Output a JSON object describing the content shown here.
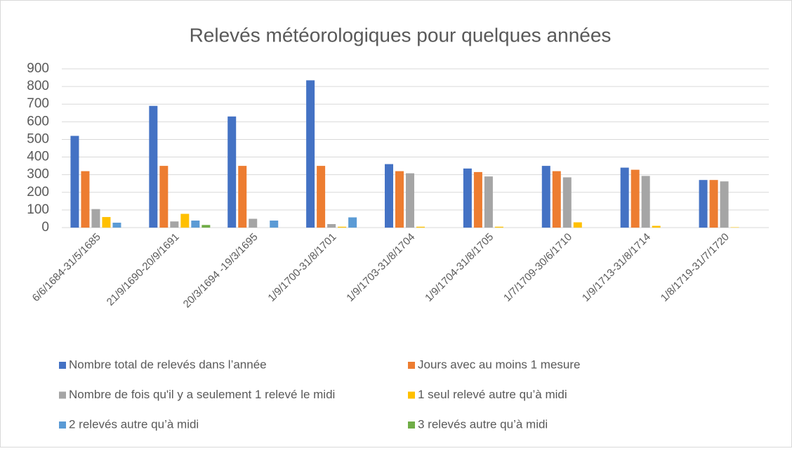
{
  "chart_data": {
    "type": "bar",
    "title": "Relevés météorologiques pour quelques années",
    "categories": [
      "6/6/1684-31/5/1685",
      "21/9/1690-20/9/1691",
      "20/3/1694 -19/3/1695",
      "1/9/1700-31/8/1701",
      "1/9/1703-31/8/1704",
      "1/9/1704-31/8/1705",
      "1/7/1709-30/6/1710",
      "1/9/1713-31/8/1714",
      "1/8/1719-31/7/1720"
    ],
    "series": [
      {
        "name": "Nombre total de relevés dans l’année",
        "color": "#4472c4",
        "values": [
          520,
          690,
          630,
          835,
          360,
          335,
          350,
          340,
          270
        ]
      },
      {
        "name": "Jours avec au moins 1 mesure",
        "color": "#ed7d31",
        "values": [
          320,
          350,
          350,
          350,
          320,
          315,
          320,
          328,
          270
        ]
      },
      {
        "name": "Nombre de fois qu'il y a seulement 1 relevé le midi",
        "color": "#a5a5a5",
        "values": [
          105,
          35,
          50,
          20,
          308,
          290,
          285,
          293,
          262
        ]
      },
      {
        "name": "1 seul relevé autre qu’à midi",
        "color": "#ffc000",
        "values": [
          60,
          78,
          0,
          5,
          5,
          5,
          30,
          10,
          2
        ]
      },
      {
        "name": "2 relevés autre qu’à midi",
        "color": "#5b9bd5",
        "values": [
          28,
          40,
          40,
          58,
          0,
          0,
          0,
          0,
          0
        ]
      },
      {
        "name": "3 relevés autre qu’à midi",
        "color": "#70ad47",
        "values": [
          0,
          15,
          0,
          0,
          0,
          0,
          0,
          0,
          0
        ]
      }
    ],
    "ylim": [
      0,
      900
    ],
    "yticks": [
      0,
      100,
      200,
      300,
      400,
      500,
      600,
      700,
      800,
      900
    ],
    "grid": true,
    "legend": "bottom"
  }
}
